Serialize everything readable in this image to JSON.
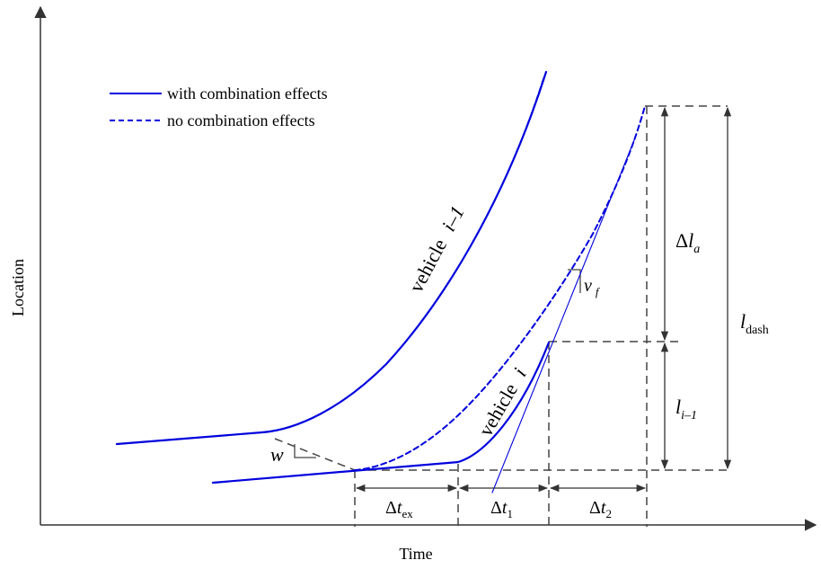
{
  "axes": {
    "x_label": "Time",
    "y_label": "Location"
  },
  "legend": {
    "items": [
      {
        "label": "with combination effects",
        "style": "solid"
      },
      {
        "label": "no combination effects",
        "style": "dashed"
      }
    ]
  },
  "curves": {
    "leader_label": "vehicle",
    "leader_index": "i–1",
    "follower_label": "vehicle",
    "follower_index": "i"
  },
  "annotations": {
    "w": "w",
    "vf_base": "v",
    "vf_sub": "f",
    "delta": "Δ",
    "dt_ex_base": "t",
    "dt_ex_sub": "ex",
    "dt1_base": "t",
    "dt1_sub": "1",
    "dt2_base": "t",
    "dt2_sub": "2",
    "dla_base": "l",
    "dla_sub": "a",
    "li_base": "l",
    "li_sub": "i–1",
    "ldash_base": "l",
    "ldash_sub": "dash"
  },
  "colors": {
    "curve": "#0000dd",
    "axis": "#333333",
    "dim": "#444444"
  }
}
